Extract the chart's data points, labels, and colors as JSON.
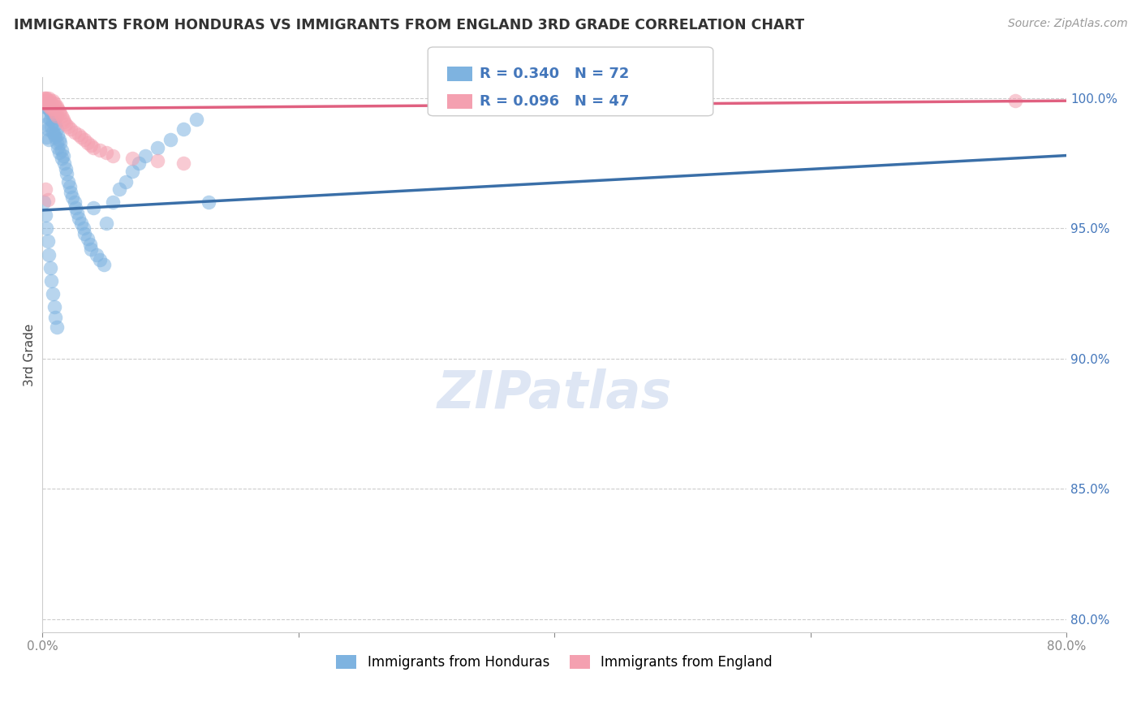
{
  "title": "IMMIGRANTS FROM HONDURAS VS IMMIGRANTS FROM ENGLAND 3RD GRADE CORRELATION CHART",
  "source": "Source: ZipAtlas.com",
  "ylabel": "3rd Grade",
  "legend_label_1": "Immigrants from Honduras",
  "legend_label_2": "Immigrants from England",
  "R_honduras": 0.34,
  "N_honduras": 72,
  "R_england": 0.096,
  "N_england": 47,
  "xlim": [
    0.0,
    0.8
  ],
  "ylim": [
    0.795,
    1.008
  ],
  "color_honduras": "#7EB3E0",
  "color_england": "#F4A0B0",
  "color_line_honduras": "#3A6FA8",
  "color_line_england": "#E06080",
  "color_text_R": "#4477BB",
  "honduras_x": [
    0.001,
    0.002,
    0.003,
    0.003,
    0.004,
    0.004,
    0.005,
    0.005,
    0.006,
    0.006,
    0.007,
    0.007,
    0.008,
    0.008,
    0.009,
    0.009,
    0.01,
    0.01,
    0.011,
    0.011,
    0.012,
    0.012,
    0.013,
    0.013,
    0.014,
    0.015,
    0.015,
    0.016,
    0.017,
    0.018,
    0.019,
    0.02,
    0.021,
    0.022,
    0.023,
    0.025,
    0.026,
    0.027,
    0.028,
    0.03,
    0.032,
    0.033,
    0.035,
    0.037,
    0.038,
    0.04,
    0.042,
    0.045,
    0.048,
    0.05,
    0.055,
    0.06,
    0.065,
    0.07,
    0.075,
    0.08,
    0.09,
    0.1,
    0.11,
    0.12,
    0.001,
    0.002,
    0.003,
    0.004,
    0.005,
    0.006,
    0.007,
    0.008,
    0.009,
    0.01,
    0.011,
    0.13
  ],
  "honduras_y": [
    0.997,
    0.993,
    0.99,
    0.985,
    0.998,
    0.988,
    0.996,
    0.984,
    0.995,
    0.992,
    0.994,
    0.989,
    0.991,
    0.987,
    0.993,
    0.986,
    0.99,
    0.985,
    0.988,
    0.983,
    0.986,
    0.981,
    0.984,
    0.979,
    0.983,
    0.98,
    0.977,
    0.978,
    0.975,
    0.973,
    0.971,
    0.968,
    0.966,
    0.964,
    0.962,
    0.96,
    0.958,
    0.956,
    0.954,
    0.952,
    0.95,
    0.948,
    0.946,
    0.944,
    0.942,
    0.958,
    0.94,
    0.938,
    0.936,
    0.952,
    0.96,
    0.965,
    0.968,
    0.972,
    0.975,
    0.978,
    0.981,
    0.984,
    0.988,
    0.992,
    0.96,
    0.955,
    0.95,
    0.945,
    0.94,
    0.935,
    0.93,
    0.925,
    0.92,
    0.916,
    0.912,
    0.96
  ],
  "england_x": [
    0.001,
    0.001,
    0.002,
    0.002,
    0.003,
    0.003,
    0.004,
    0.004,
    0.005,
    0.005,
    0.006,
    0.006,
    0.007,
    0.007,
    0.008,
    0.008,
    0.009,
    0.009,
    0.01,
    0.01,
    0.011,
    0.011,
    0.012,
    0.013,
    0.014,
    0.015,
    0.016,
    0.017,
    0.018,
    0.02,
    0.022,
    0.025,
    0.028,
    0.03,
    0.033,
    0.035,
    0.038,
    0.04,
    0.045,
    0.05,
    0.055,
    0.07,
    0.09,
    0.11,
    0.76,
    0.002,
    0.004
  ],
  "england_y": [
    1.0,
    0.999,
    1.0,
    0.999,
    1.0,
    0.998,
    0.999,
    0.998,
    1.0,
    0.997,
    0.999,
    0.997,
    0.998,
    0.996,
    0.999,
    0.996,
    0.998,
    0.995,
    0.997,
    0.994,
    0.997,
    0.993,
    0.996,
    0.995,
    0.994,
    0.993,
    0.992,
    0.991,
    0.99,
    0.989,
    0.988,
    0.987,
    0.986,
    0.985,
    0.984,
    0.983,
    0.982,
    0.981,
    0.98,
    0.979,
    0.978,
    0.977,
    0.976,
    0.975,
    0.999,
    0.965,
    0.961
  ],
  "line_honduras_x0": 0.0,
  "line_honduras_y0": 0.957,
  "line_honduras_x1": 0.8,
  "line_honduras_y1": 0.978,
  "line_england_x0": 0.0,
  "line_england_y0": 0.996,
  "line_england_x1": 0.8,
  "line_england_y1": 0.999
}
